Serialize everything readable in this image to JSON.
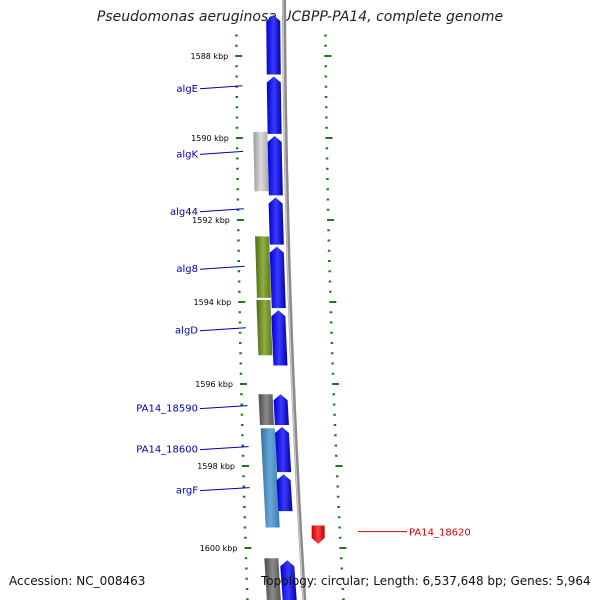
{
  "title": "Pseudomonas aeruginosa UCBPP-PA14, complete genome",
  "footer": {
    "accession": "Accession: NC_008463",
    "topology": "Topology: circular; Length: 6,537,648 bp; Genes: 5,964"
  },
  "colors": {
    "forward_gene": "#1010ff",
    "highlight_gene": "#ff0000",
    "tick_green": "#1a7a1a",
    "backbone": "#8a8a8a",
    "label_blue": "#0000b0",
    "label_red": "#d80000"
  },
  "scale_ticks": [
    {
      "kbp": 1588,
      "label": "1588 kbp"
    },
    {
      "kbp": 1590,
      "label": "1590 kbp"
    },
    {
      "kbp": 1592,
      "label": "1592 kbp"
    },
    {
      "kbp": 1594,
      "label": "1594 kbp"
    },
    {
      "kbp": 1596,
      "label": "1596 kbp"
    },
    {
      "kbp": 1598,
      "label": "1598 kbp"
    },
    {
      "kbp": 1600,
      "label": "1600 kbp"
    }
  ],
  "gene_labels": [
    {
      "name": "algE",
      "kbp": 1588.8
    },
    {
      "name": "algK",
      "kbp": 1590.4
    },
    {
      "name": "alg44",
      "kbp": 1591.8
    },
    {
      "name": "alg8",
      "kbp": 1593.2
    },
    {
      "name": "algD",
      "kbp": 1594.7
    },
    {
      "name": "PA14_18590",
      "kbp": 1596.6
    },
    {
      "name": "PA14_18600",
      "kbp": 1597.6
    },
    {
      "name": "argF",
      "kbp": 1598.6
    },
    {
      "name": "PA14_18620",
      "kbp": 1599.6,
      "highlight": true
    }
  ],
  "feature_tracks": [
    {
      "kind": "cds",
      "track": "outer",
      "color": "gray",
      "start": 1589.85,
      "end": 1591.3
    },
    {
      "kind": "cds",
      "track": "outer",
      "color": "olive",
      "start": 1592.4,
      "end": 1593.9
    },
    {
      "kind": "cds",
      "track": "outer",
      "color": "olive",
      "start": 1593.95,
      "end": 1595.3
    },
    {
      "kind": "cds",
      "track": "outer",
      "color": "darkgray",
      "start": 1596.25,
      "end": 1597.0
    },
    {
      "kind": "cds",
      "track": "outer",
      "color": "steelblue",
      "start": 1597.08,
      "end": 1599.5
    },
    {
      "kind": "cds",
      "track": "outer",
      "color": "darkgray",
      "start": 1600.25,
      "end": 1601.3
    },
    {
      "kind": "gene",
      "track": "inner",
      "color": "blue",
      "start": 1587.0,
      "end": 1588.45
    },
    {
      "kind": "gene",
      "track": "inner",
      "color": "blue",
      "start": 1588.5,
      "end": 1589.9
    },
    {
      "kind": "gene",
      "track": "inner",
      "color": "blue",
      "start": 1589.95,
      "end": 1591.4
    },
    {
      "kind": "gene",
      "track": "inner",
      "color": "blue",
      "start": 1591.45,
      "end": 1592.6
    },
    {
      "kind": "gene",
      "track": "inner",
      "color": "blue",
      "start": 1592.65,
      "end": 1594.15
    },
    {
      "kind": "gene",
      "track": "inner",
      "color": "blue",
      "start": 1594.2,
      "end": 1595.55
    },
    {
      "kind": "gene",
      "track": "inner",
      "color": "blue",
      "start": 1596.25,
      "end": 1597.0
    },
    {
      "kind": "gene",
      "track": "inner",
      "color": "blue",
      "start": 1597.05,
      "end": 1598.15
    },
    {
      "kind": "gene",
      "track": "inner",
      "color": "blue",
      "start": 1598.2,
      "end": 1599.1
    },
    {
      "kind": "gene",
      "track": "inner",
      "color": "blue",
      "start": 1600.3,
      "end": 1601.3
    },
    {
      "kind": "gene",
      "track": "right",
      "color": "red",
      "start": 1599.45,
      "end": 1599.9
    }
  ]
}
